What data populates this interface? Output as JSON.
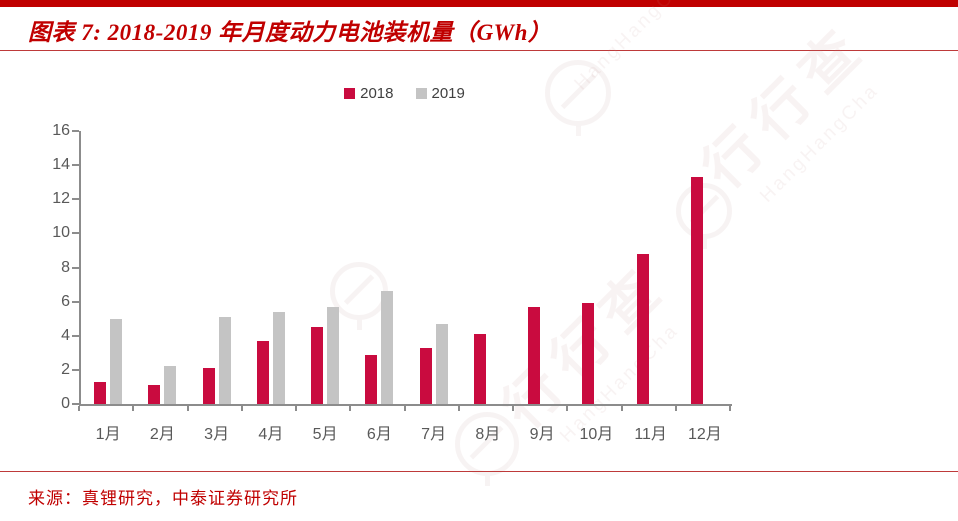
{
  "page": {
    "title": "图表 7:  2018-2019 年月度动力电池装机量（GWh）",
    "source": "来源：真锂研究，中泰证券研究所"
  },
  "colors": {
    "accent_red": "#C00000",
    "divider_red": "#BE3A3A",
    "series_2018_red": "#C90B3F",
    "series_2019_gray": "#C4C4C4",
    "axis_gray": "#8C8C8C",
    "tick_label_gray": "#595959"
  },
  "legend": [
    {
      "label": "2018",
      "color": "#C90B3F"
    },
    {
      "label": "2019",
      "color": "#C4C4C4"
    }
  ],
  "watermark": {
    "cn": "行行查",
    "en": "HangHangCha"
  },
  "chart_data": {
    "type": "bar",
    "title": "图表 7: 2018-2019 年月度动力电池装机量（GWh）",
    "xlabel": "",
    "ylabel": "GWh",
    "categories": [
      "1月",
      "2月",
      "3月",
      "4月",
      "5月",
      "6月",
      "7月",
      "8月",
      "9月",
      "10月",
      "11月",
      "12月"
    ],
    "series": [
      {
        "name": "2018",
        "color": "#C90B3F",
        "values": [
          1.3,
          1.1,
          2.1,
          3.7,
          4.5,
          2.9,
          3.3,
          4.1,
          5.7,
          5.9,
          8.8,
          13.3
        ]
      },
      {
        "name": "2019",
        "color": "#C4C4C4",
        "values": [
          5.0,
          2.2,
          5.1,
          5.4,
          5.7,
          6.6,
          4.7,
          null,
          null,
          null,
          null,
          null
        ]
      }
    ],
    "ylim": [
      0,
      16
    ],
    "yticks": [
      0,
      2,
      4,
      6,
      8,
      10,
      12,
      14,
      16
    ],
    "grid": false,
    "legend_position": "top-center"
  }
}
